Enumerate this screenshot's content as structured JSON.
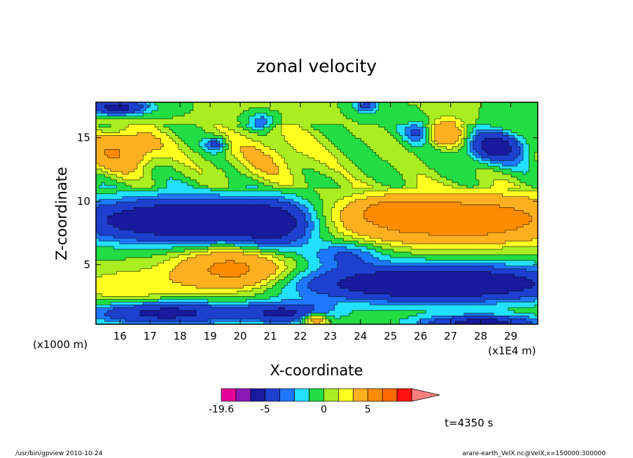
{
  "chart_data": {
    "type": "heatmap",
    "title": "zonal velocity",
    "xlabel": "X-coordinate",
    "ylabel": "Z-coordinate",
    "x_unit_left": "(x1000 m)",
    "x_unit_right": "(x1E4 m)",
    "xlim": [
      15.2,
      29.9
    ],
    "ylim": [
      0.3,
      17.8
    ],
    "x_ticks": [
      16,
      17,
      18,
      19,
      20,
      21,
      22,
      23,
      24,
      25,
      26,
      27,
      28,
      29
    ],
    "y_ticks": [
      5,
      10,
      15
    ],
    "x_tick_labels": [
      "16",
      "17",
      "18",
      "19",
      "20",
      "21",
      "22",
      "23",
      "24",
      "25",
      "26",
      "27",
      "28",
      "29"
    ],
    "y_tick_labels": [
      "5",
      "10",
      "15"
    ],
    "colorbar": {
      "levels": [
        -19.6,
        -15,
        -10,
        -5,
        -3,
        -2,
        -1,
        0,
        1,
        2,
        5,
        10,
        15
      ],
      "labels": [
        "-19.6",
        "-5",
        "0",
        "5"
      ],
      "colors": [
        "#e60099",
        "#8a1ab8",
        "#1a1a9e",
        "#1e40cf",
        "#1e78ff",
        "#22e0ff",
        "#22dd44",
        "#aaee22",
        "#ffff20",
        "#ffb020",
        "#ff8c00",
        "#ff6a00",
        "#ff1010"
      ],
      "over_color": "#ff8080",
      "extend": "max"
    },
    "features": [
      {
        "kind": "negative-jet",
        "x": [
          15.2,
          22.2
        ],
        "y": [
          6,
          11
        ],
        "peak": -10
      },
      {
        "kind": "positive-jet",
        "x": [
          22.5,
          29.9
        ],
        "y": [
          6,
          11
        ],
        "peak": 12.5
      },
      {
        "kind": "negative-jet",
        "x": [
          22.5,
          29.9
        ],
        "y": [
          1,
          6
        ],
        "peak": -9
      },
      {
        "kind": "positive-lobe",
        "x": [
          18.5,
          22
        ],
        "y": [
          2,
          7
        ],
        "peak": 6
      },
      {
        "kind": "positive-lobe",
        "x": [
          15.2,
          17
        ],
        "y": [
          12,
          16
        ],
        "peak": 5
      },
      {
        "kind": "negative-cell",
        "x": [
          27.5,
          29.5
        ],
        "y": [
          12,
          16
        ],
        "peak": -6
      }
    ],
    "annotations": {
      "time": "t=4350 s",
      "footer_left": "/usr/bin/gpview   2010-10-24",
      "footer_right": "arare-earth_VelX.nc@VelX,x=150000:300000"
    }
  }
}
